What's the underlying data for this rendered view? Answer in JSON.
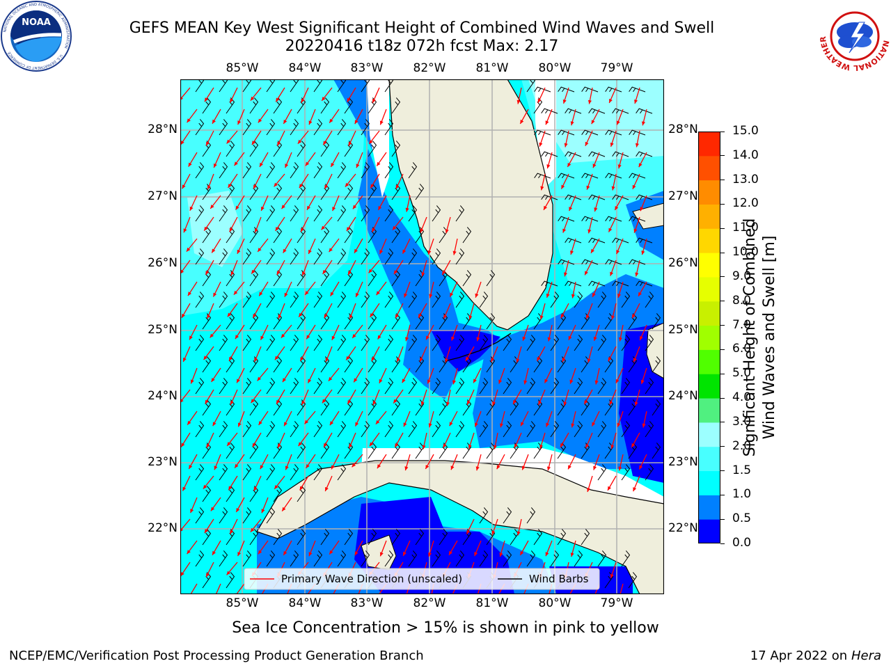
{
  "header": {
    "title_line1": "GEFS MEAN Key West Significant Height of Combined Wind Waves and Swell",
    "title_line2": "20220416 t18z 072h fcst   Max: 2.17"
  },
  "logos": {
    "noaa_text": "NOAA",
    "noaa_ring_top": "NATIONAL OCEANIC AND ATMOSPHERIC ADMINISTRATION",
    "noaa_ring_bottom": "U.S. DEPARTMENT OF COMMERCE",
    "nws_ring": "NATIONAL WEATHER SERVICE"
  },
  "map": {
    "lon_ticks": [
      "85°W",
      "84°W",
      "83°W",
      "82°W",
      "81°W",
      "80°W",
      "79°W"
    ],
    "lat_ticks": [
      "28°N",
      "27°N",
      "26°N",
      "25°N",
      "24°N",
      "23°N",
      "22°N"
    ],
    "legend": {
      "wave_label": "Primary Wave Direction (unscaled)",
      "barb_label": "Wind Barbs"
    },
    "colors": {
      "land": "#efeedc",
      "ocean_low": "#00ffff",
      "ocean_mid": "#0080ff",
      "ocean_deep": "#0000ff",
      "ocean_light": "#48ffff",
      "arrow": "#ff0000"
    }
  },
  "colorbar": {
    "label_line1": "Significant Height of Combined",
    "label_line2": "Wind Waves and Swell [m]",
    "ticks": [
      "0.0",
      "0.5",
      "1.0",
      "1.5",
      "2.0",
      "3.0",
      "4.0",
      "5.0",
      "6.0",
      "7.0",
      "8.0",
      "9.0",
      "10.0",
      "11.0",
      "12.0",
      "13.0",
      "14.0",
      "15.0"
    ],
    "colors": [
      "#0000ff",
      "#0080ff",
      "#00ffff",
      "#48ffff",
      "#9cffff",
      "#50f080",
      "#00e400",
      "#50ff00",
      "#a0ff00",
      "#c8f000",
      "#e6ff00",
      "#ffff00",
      "#ffd700",
      "#ffb000",
      "#ff8c00",
      "#ff5000",
      "#ff2800"
    ]
  },
  "caption": "Sea Ice Concentration > 15% is shown in pink to yellow",
  "footer": {
    "left": "NCEP/EMC/Verification Post Processing Product Generation Branch",
    "right_prefix": "17 Apr 2022 on ",
    "right_host": "Hera"
  }
}
